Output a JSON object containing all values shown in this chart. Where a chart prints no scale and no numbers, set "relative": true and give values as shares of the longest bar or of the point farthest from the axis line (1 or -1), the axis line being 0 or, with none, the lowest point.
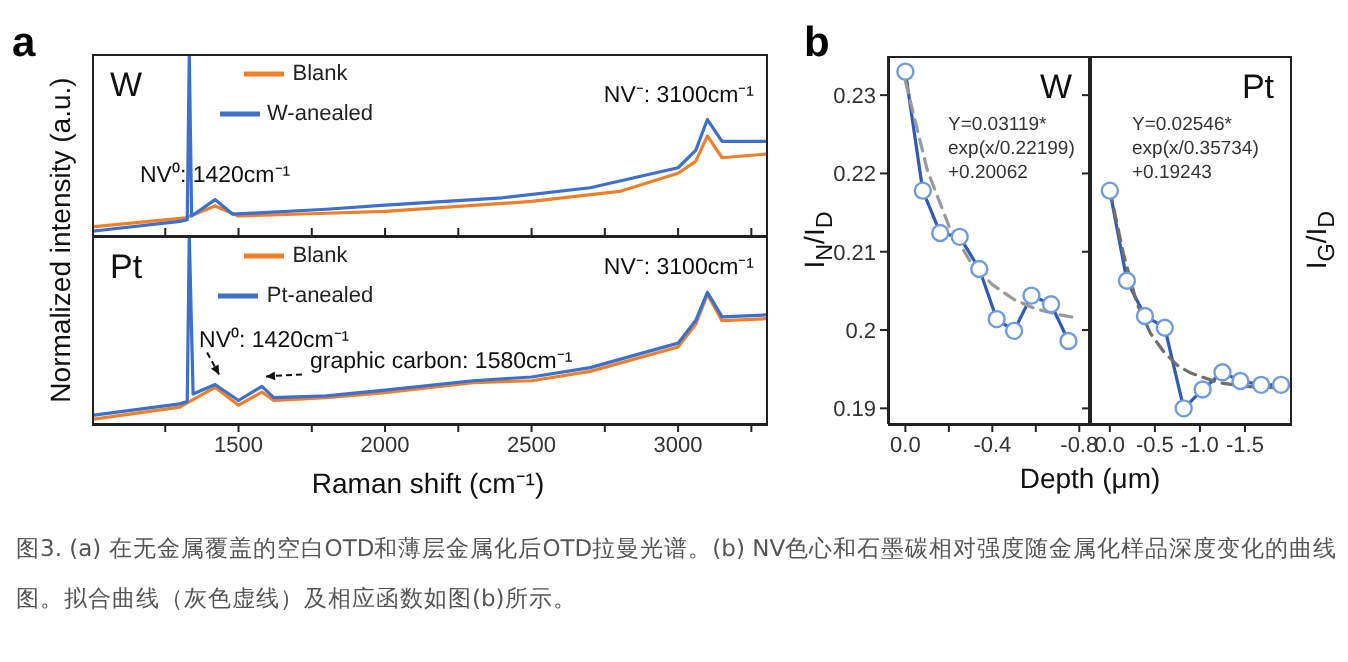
{
  "chart_data": [
    {
      "type": "line",
      "relative": true,
      "title": "W",
      "ylabel": "Normalized intensity (a.u.)",
      "xlim": [
        1000,
        3300
      ],
      "xticks": [
        {
          "value": 1250,
          "label": null
        },
        {
          "value": 1500,
          "label": null
        },
        {
          "value": 1750,
          "label": null
        },
        {
          "value": 2000,
          "label": null
        },
        {
          "value": 2250,
          "label": null
        },
        {
          "value": 2500,
          "label": null
        },
        {
          "value": 2750,
          "label": null
        },
        {
          "value": 3000,
          "label": null
        },
        {
          "value": 3250,
          "label": null
        }
      ],
      "tick_labels": false,
      "legend": "top left",
      "series": [
        {
          "name": "Blank",
          "color": "#f07f2a",
          "x": [
            1000,
            1320,
            1420,
            1500,
            1800,
            2000,
            2500,
            2800,
            3000,
            3060,
            3100,
            3150,
            3300
          ],
          "values": [
            0.05,
            0.1,
            0.165,
            0.11,
            0.125,
            0.135,
            0.19,
            0.245,
            0.345,
            0.41,
            0.55,
            0.43,
            0.45
          ]
        },
        {
          "name": "W-anealed",
          "color": "#3d6fcc",
          "x": [
            1000,
            1300,
            1325,
            1332,
            1340,
            1420,
            1480,
            1800,
            2000,
            2400,
            2700,
            3000,
            3060,
            3100,
            3150,
            3300
          ],
          "values": [
            0.026,
            0.08,
            0.09,
            1.0,
            0.11,
            0.2,
            0.12,
            0.147,
            0.17,
            0.21,
            0.265,
            0.375,
            0.47,
            0.64,
            0.52,
            0.52
          ]
        }
      ],
      "annotations": [
        "a",
        "图3. (a) 在无金属覆盖的空白OTD和薄层金属化后OTD拉曼光谱。(b) NV色心和石墨碳相对强度随金属化样品深度变化的曲线图。拟合曲线（灰色虚线）及相应函数如图(b)所示。",
        {
          "text": "NV⁰: 1420cm⁻¹",
          "x": 1420,
          "y": 0.2
        },
        {
          "text": "NV⁻: 3100cm⁻¹",
          "x": 3100,
          "y": 0.64
        }
      ]
    },
    {
      "type": "line",
      "relative": true,
      "title": "Pt",
      "xlabel": "Raman shift (cm⁻¹)",
      "xlim": [
        1000,
        3300
      ],
      "xticks": [
        {
          "value": 1250,
          "label": null
        },
        1500,
        {
          "value": 1750,
          "label": null
        },
        2000,
        {
          "value": 2250,
          "label": null
        },
        2500,
        {
          "value": 2750,
          "label": null
        },
        3000,
        {
          "value": 3250,
          "label": null
        }
      ],
      "tick_labels": "x",
      "legend": "top left",
      "series": [
        {
          "name": "Blank",
          "color": "#f07f2a",
          "x": [
            1000,
            1300,
            1345,
            1420,
            1500,
            1580,
            1620,
            1800,
            2000,
            2300,
            2500,
            2700,
            3000,
            3060,
            3100,
            3150,
            3300
          ],
          "values": [
            0.025,
            0.09,
            0.13,
            0.195,
            0.1,
            0.17,
            0.125,
            0.14,
            0.167,
            0.22,
            0.23,
            0.28,
            0.41,
            0.53,
            0.69,
            0.55,
            0.56
          ]
        },
        {
          "name": "Pt-anealed",
          "color": "#3d6fcc",
          "x": [
            1000,
            1300,
            1325,
            1332,
            1345,
            1420,
            1500,
            1580,
            1620,
            1800,
            2000,
            2300,
            2500,
            2700,
            3000,
            3060,
            3100,
            3150,
            3300
          ],
          "values": [
            0.046,
            0.107,
            0.12,
            1.0,
            0.16,
            0.21,
            0.125,
            0.2,
            0.14,
            0.15,
            0.18,
            0.23,
            0.25,
            0.3,
            0.43,
            0.55,
            0.7,
            0.57,
            0.58
          ]
        }
      ],
      "annotations": [
        {
          "text": "NV⁰: 1420cm⁻¹",
          "x": 1420,
          "y": 0.21
        },
        {
          "text": "graphic carbon: 1580cm⁻¹",
          "x": 1580,
          "y": 0.2
        },
        {
          "text": "NV⁻: 3100cm⁻¹",
          "x": 3100,
          "y": 0.7
        }
      ]
    },
    {
      "type": "line",
      "title": "W",
      "ylabel": "I$_{N}$/I$_{D}$",
      "xlabel": "Depth (μm)",
      "xlim": [
        0.08,
        -0.84
      ],
      "xticks": [
        {
          "value": 0,
          "label": "0.0"
        },
        {
          "value": -0.2,
          "label": null
        },
        -0.4,
        {
          "value": -0.6,
          "label": null
        },
        -0.8
      ],
      "ylim": [
        0.188,
        0.235
      ],
      "yticks": [
        0.19,
        0.2,
        0.21,
        0.22,
        0.23
      ],
      "series": [
        {
          "color": "#2e5bb8",
          "marker": "circle",
          "line_style": "solid",
          "x": [
            0,
            -0.08,
            -0.16,
            -0.25,
            -0.34,
            -0.42,
            -0.5,
            -0.58,
            -0.67,
            -0.75
          ],
          "values": [
            0.233,
            0.2178,
            0.2124,
            0.2119,
            0.2078,
            0.2014,
            0.1999,
            0.2044,
            0.2033,
            0.1986
          ]
        },
        {
          "type": "line",
          "color": "#9a9a9a",
          "marker": "none",
          "line_style": "dashed",
          "x": [
            0,
            -0.1,
            -0.2,
            -0.3,
            -0.4,
            -0.5,
            -0.6,
            -0.7,
            -0.78
          ],
          "values": [
            0.2318,
            0.2205,
            0.2133,
            0.2087,
            0.2058,
            0.2039,
            0.2027,
            0.202,
            0.2016
          ]
        }
      ],
      "annotations": [
        "b",
        "Y=0.03119*\nexp(x/0.22199)\n+0.20062"
      ]
    },
    {
      "type": "line",
      "title": "Pt",
      "ylabel": "I$_{G}$/I$_{D}$",
      "xlim": [
        0.22,
        -2.0
      ],
      "xticks": [
        {
          "value": 0,
          "label": "0.0"
        },
        -0.5,
        {
          "value": -1,
          "label": "-1.0"
        },
        -1.5
      ],
      "ylim": [
        0.188,
        0.235
      ],
      "yticks": [
        0.19,
        0.2,
        0.21,
        0.22,
        0.23
      ],
      "tick_labels": "x",
      "series": [
        {
          "color": "#2e5bb8",
          "marker": "circle",
          "line_style": "solid",
          "x": [
            0,
            -0.19,
            -0.39,
            -0.61,
            -0.82,
            -1.03,
            -1.25,
            -1.45,
            -1.68,
            -1.9
          ],
          "values": [
            0.2178,
            0.2063,
            0.2018,
            0.2003,
            0.19,
            0.1924,
            0.1946,
            0.1935,
            0.193,
            0.193
          ]
        },
        {
          "type": "line",
          "color": "#6f6f6f",
          "marker": "none",
          "line_style": "dashed",
          "x": [
            0,
            -0.15,
            -0.3,
            -0.45,
            -0.6,
            -0.75,
            -0.9,
            -1.2,
            -1.5,
            -1.9
          ],
          "values": [
            0.2179,
            0.2098,
            0.2034,
            0.1996,
            0.1972,
            0.1955,
            0.1945,
            0.1933,
            0.1928,
            0.1926
          ]
        }
      ],
      "annotations": [
        "Y=0.02546*\nexp(x/0.35734)\n+0.19243"
      ]
    }
  ]
}
